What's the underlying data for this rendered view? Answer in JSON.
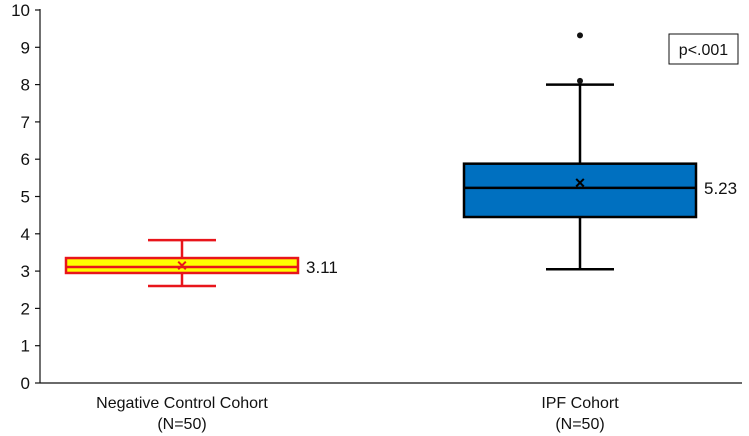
{
  "chart_data": {
    "type": "box",
    "title": "",
    "xlabel": "",
    "ylabel": "",
    "ylim": [
      0,
      10
    ],
    "yticks": [
      0,
      1,
      2,
      3,
      4,
      5,
      6,
      7,
      8,
      9,
      10
    ],
    "grid": false,
    "annotation": "p<.001",
    "categories": [
      {
        "label_line1": "Negative Control Cohort",
        "label_line2": "(N=50)",
        "whisker_low": 2.6,
        "q1": 2.95,
        "median": 3.11,
        "q3": 3.35,
        "whisker_high": 3.83,
        "mean": 3.15,
        "outliers": [],
        "median_label": "3.11",
        "fill": "#ffff00",
        "stroke": "#e8151b",
        "mean_color": "#e8151b"
      },
      {
        "label_line1": "IPF Cohort",
        "label_line2": "(N=50)",
        "whisker_low": 3.05,
        "q1": 4.45,
        "median": 5.23,
        "q3": 5.88,
        "whisker_high": 8.0,
        "mean": 5.37,
        "outliers": [
          8.1,
          9.32
        ],
        "median_label": "5.23",
        "fill": "#0070c0",
        "stroke": "#000000",
        "mean_color": "#000000"
      }
    ]
  }
}
